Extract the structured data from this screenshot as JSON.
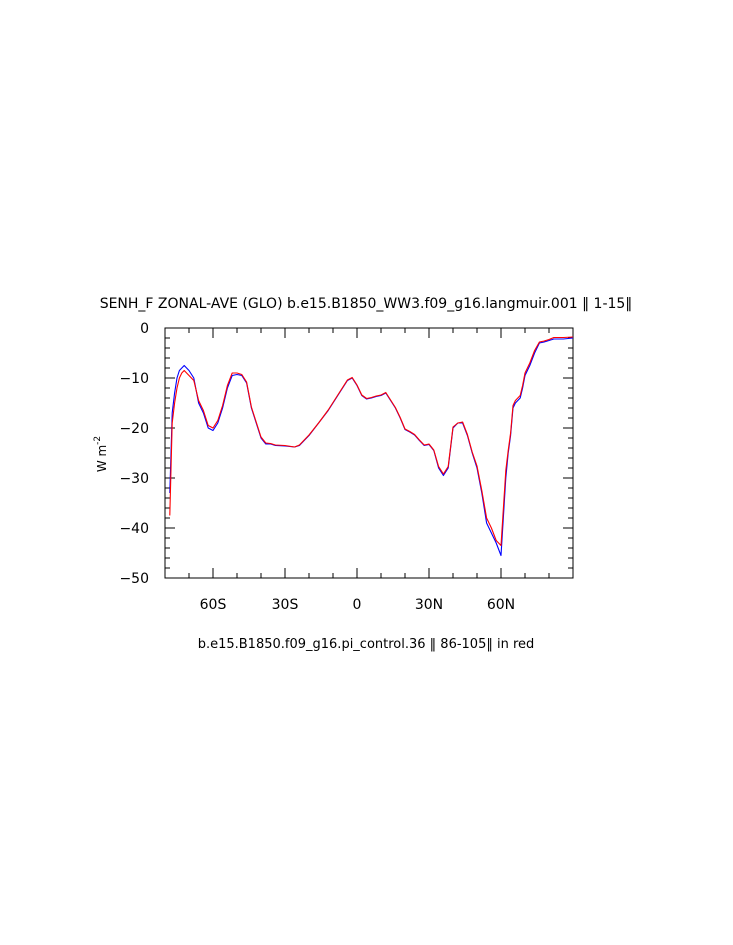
{
  "chart_data": {
    "type": "line",
    "title": "SENH_F ZONAL-AVE (GLO) b.e15.B1850_WW3.f09_g16.langmuir.001 ‖ 1-15‖",
    "xlabel": "b.e15.B1850.f09_g16.pi_control.36 ‖ 86-105‖ in red",
    "ylabel": "W m",
    "ylabel_superscript": "-2",
    "xlim": [
      -80,
      90
    ],
    "ylim": [
      -50,
      0
    ],
    "x_ticks": [
      {
        "value": -60,
        "label": "60S"
      },
      {
        "value": -30,
        "label": "30S"
      },
      {
        "value": 0,
        "label": "0"
      },
      {
        "value": 30,
        "label": "30N"
      },
      {
        "value": 60,
        "label": "60N"
      }
    ],
    "y_ticks": [
      {
        "value": 0,
        "label": "0"
      },
      {
        "value": -10,
        "label": "−10"
      },
      {
        "value": -20,
        "label": "−20"
      },
      {
        "value": -30,
        "label": "−30"
      },
      {
        "value": -40,
        "label": "−40"
      },
      {
        "value": -50,
        "label": "−50"
      }
    ],
    "grid": false,
    "series": [
      {
        "color": "#0000ff",
        "x": [
          -78,
          -77,
          -76,
          -75,
          -74,
          -73,
          -72,
          -71,
          -70,
          -68,
          -66,
          -64,
          -62,
          -60,
          -58,
          -56,
          -54,
          -52,
          -50,
          -48,
          -46,
          -44,
          -42,
          -40,
          -38,
          -36,
          -34,
          -30,
          -26,
          -24,
          -22,
          -20,
          -16,
          -12,
          -8,
          -4,
          -2,
          0,
          2,
          4,
          6,
          8,
          10,
          12,
          14,
          16,
          18,
          20,
          22,
          24,
          26,
          28,
          30,
          32,
          34,
          36,
          38,
          40,
          42,
          44,
          46,
          48,
          50,
          52,
          54,
          56,
          58,
          60,
          62,
          63,
          64,
          65,
          66,
          68,
          69,
          70,
          72,
          74,
          76,
          78,
          80,
          82,
          86,
          90
        ],
        "y": [
          -33,
          -17,
          -13,
          -10,
          -8.5,
          -8,
          -7.5,
          -8,
          -8.5,
          -10,
          -15,
          -17,
          -20,
          -20.5,
          -19,
          -16,
          -12,
          -9.5,
          -9.3,
          -9.5,
          -11,
          -16,
          -19,
          -22,
          -23.2,
          -23.2,
          -23.5,
          -23.6,
          -23.8,
          -23.5,
          -22.5,
          -21.5,
          -19,
          -16.5,
          -13.5,
          -10.5,
          -10,
          -11.5,
          -13.5,
          -14.2,
          -14,
          -13.7,
          -13.5,
          -13,
          -14.5,
          -16,
          -18,
          -20.3,
          -20.8,
          -21.4,
          -22.5,
          -23.5,
          -23.3,
          -24.5,
          -28,
          -29.5,
          -28,
          -20,
          -19,
          -19,
          -21.5,
          -25,
          -28,
          -33,
          -39,
          -41,
          -43,
          -45.5,
          -30,
          -25,
          -21.5,
          -16,
          -15,
          -14,
          -12,
          -9.5,
          -7.5,
          -5,
          -3,
          -2.8,
          -2.5,
          -2.2,
          -2.2,
          -2
        ]
      },
      {
        "color": "#ff0000",
        "x": [
          -78,
          -77,
          -76,
          -75,
          -74,
          -73,
          -72,
          -71,
          -70,
          -68,
          -66,
          -64,
          -62,
          -60,
          -58,
          -56,
          -54,
          -52,
          -50,
          -48,
          -46,
          -44,
          -42,
          -40,
          -38,
          -36,
          -34,
          -30,
          -26,
          -24,
          -22,
          -20,
          -16,
          -12,
          -8,
          -4,
          -2,
          0,
          2,
          4,
          6,
          8,
          10,
          12,
          14,
          16,
          18,
          20,
          22,
          24,
          26,
          28,
          30,
          32,
          34,
          36,
          38,
          40,
          42,
          44,
          46,
          48,
          50,
          52,
          54,
          56,
          58,
          60,
          62,
          63,
          64,
          65,
          66,
          68,
          69,
          70,
          72,
          74,
          76,
          78,
          80,
          82,
          86,
          90
        ],
        "y": [
          -37.5,
          -19,
          -15,
          -12,
          -10,
          -9,
          -8.5,
          -9,
          -9.5,
          -10.5,
          -14.5,
          -16.5,
          -19.5,
          -20,
          -18.5,
          -15.5,
          -11.5,
          -9,
          -9,
          -9.3,
          -10.8,
          -15.8,
          -18.8,
          -21.8,
          -23,
          -23.1,
          -23.4,
          -23.5,
          -23.8,
          -23.4,
          -22.4,
          -21.4,
          -19,
          -16.4,
          -13.4,
          -10.4,
          -9.9,
          -11.4,
          -13.4,
          -14.1,
          -13.9,
          -13.6,
          -13.4,
          -12.9,
          -14.4,
          -15.9,
          -17.9,
          -20.2,
          -20.7,
          -21.3,
          -22.4,
          -23.4,
          -23.2,
          -24.4,
          -27.7,
          -29.2,
          -27.7,
          -19.8,
          -19,
          -18.8,
          -21.3,
          -24.8,
          -27.6,
          -32.5,
          -38,
          -40,
          -42.5,
          -43.5,
          -28.5,
          -24.5,
          -21,
          -15.5,
          -14.5,
          -13.5,
          -11.5,
          -9,
          -7,
          -4.5,
          -2.8,
          -2.6,
          -2.3,
          -1.9,
          -1.9,
          -1.8
        ]
      }
    ]
  }
}
